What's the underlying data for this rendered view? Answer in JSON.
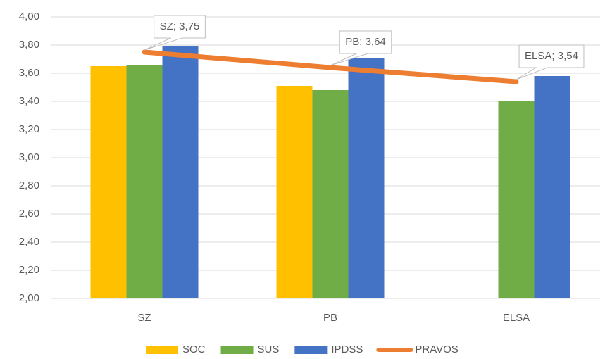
{
  "chart_data": {
    "type": "bar",
    "categories": [
      "SZ",
      "PB",
      "ELSA"
    ],
    "series": [
      {
        "name": "SOC",
        "color": "#ffc000",
        "values": [
          3.65,
          3.51,
          null
        ]
      },
      {
        "name": "SUS",
        "color": "#70ad47",
        "values": [
          3.66,
          3.48,
          3.4
        ]
      },
      {
        "name": "IPDSS",
        "color": "#4472c4",
        "values": [
          3.79,
          3.71,
          3.58
        ]
      },
      {
        "name": "PRAVOS",
        "type": "line",
        "color": "#ed7d31",
        "values": [
          3.75,
          3.64,
          3.54
        ],
        "value_labels": [
          "SZ; 3,75",
          "PB; 3,64",
          "ELSA; 3,54"
        ]
      }
    ],
    "ylim": [
      2,
      4
    ],
    "yticks": [
      {
        "value": 2,
        "label": "2,00"
      },
      {
        "value": 2.2,
        "label": "2,20"
      },
      {
        "value": 2.4,
        "label": "2,40"
      },
      {
        "value": 2.6,
        "label": "2,60"
      },
      {
        "value": 2.8,
        "label": "2,80"
      },
      {
        "value": 3,
        "label": "3,00"
      },
      {
        "value": 3.2,
        "label": "3,20"
      },
      {
        "value": 3.4,
        "label": "3,40"
      },
      {
        "value": 3.6,
        "label": "3,60"
      },
      {
        "value": 3.8,
        "label": "3,80"
      },
      {
        "value": 4,
        "label": "4,00"
      }
    ],
    "grid": true,
    "legend": "bottom"
  }
}
